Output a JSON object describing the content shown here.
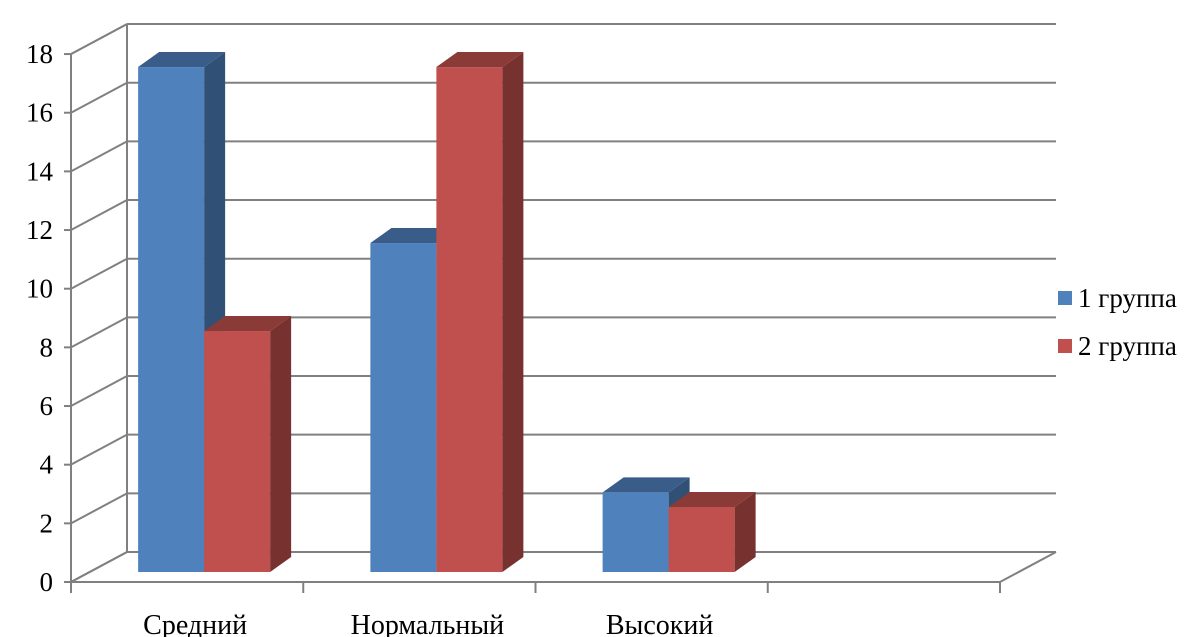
{
  "chart_data": {
    "type": "bar",
    "title": "",
    "xlabel": "",
    "ylabel": "",
    "categories": [
      "Средний",
      "Нормальный",
      "Высокий"
    ],
    "series": [
      {
        "name": "1 группа",
        "values": [
          18,
          12,
          3.5
        ],
        "color": "#4f81bd"
      },
      {
        "name": "2 группа",
        "values": [
          9,
          18,
          3
        ],
        "color": "#c0504d"
      }
    ],
    "ylim": [
      0,
      18
    ],
    "yticks": [
      "0",
      "2",
      "4",
      "6",
      "8",
      "10",
      "12",
      "14",
      "16",
      "18"
    ],
    "grid": true,
    "legend": "right",
    "style": "3d-column"
  }
}
